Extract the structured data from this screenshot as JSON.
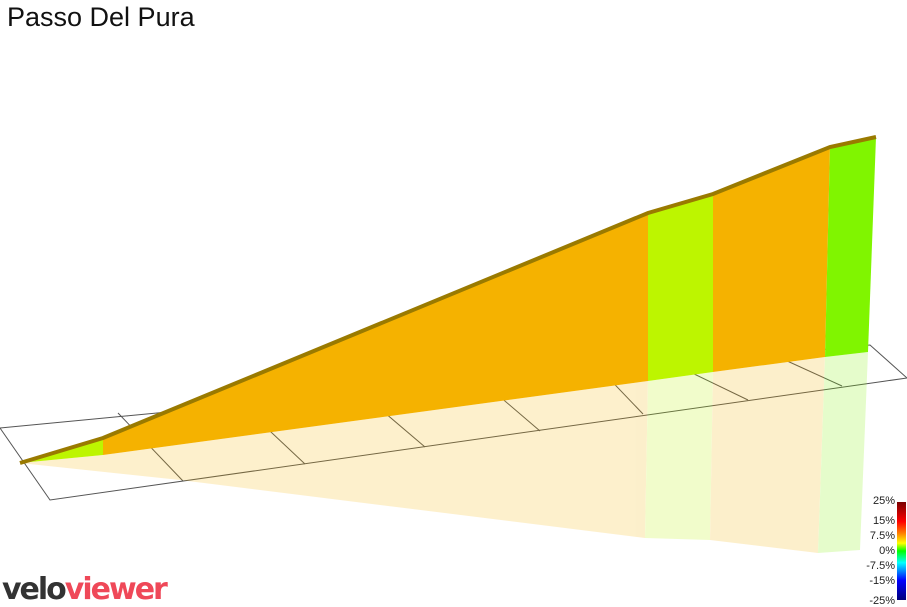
{
  "title": "Passo Del Pura",
  "logo": {
    "part1": "velo",
    "part2": "viewer"
  },
  "legend": {
    "labels": [
      "25%",
      "15%",
      "7.5%",
      "0%",
      "-7.5%",
      "-15%",
      "-25%"
    ]
  },
  "colors": {
    "orange": "#f5b200",
    "lime": "#bdf500",
    "green": "#80f500",
    "ridge": "#9a7a00"
  }
}
